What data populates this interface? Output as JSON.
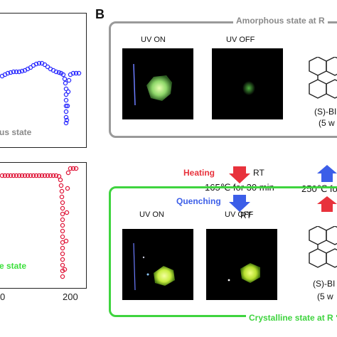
{
  "panel_a": {
    "top_plot_label": "us state",
    "bottom_plot_label": "e state",
    "x_ticks": [
      "0",
      "200"
    ],
    "colors": {
      "top_series": "#2b2bff",
      "bottom_series": "#e01a3c",
      "top_label": "#8a8a8a",
      "bottom_label": "#3ce03c"
    }
  },
  "panel_b": {
    "letter": "B",
    "amorphous_title": "Amorphous state at R",
    "crystalline_title": "Crystalline state at R",
    "uv_on": "UV ON",
    "uv_off": "UV OFF",
    "compound_name_top": "(S)-BI",
    "compound_wt_top": "(5 w",
    "compound_name_bottom": "(S)-BI",
    "compound_wt_bottom": "(5 w",
    "heating_label": "Heating",
    "quenching_label": "Quenching",
    "rt_label": "RT",
    "heating_condition": "165℃ for 30 min",
    "right_condition": "250℃ fo",
    "colors": {
      "amorphous_border": "#9a9a9a",
      "crystalline_border": "#3fd43f",
      "heating": "#e8323c",
      "quenching": "#3c5ee8"
    }
  }
}
